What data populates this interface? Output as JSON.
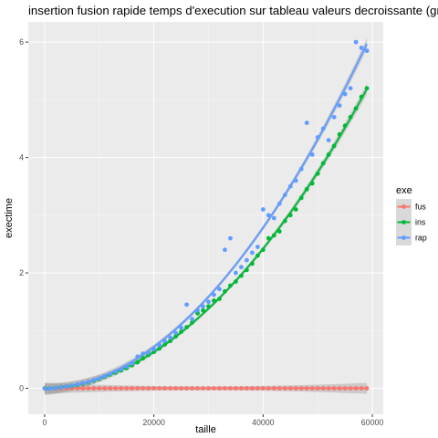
{
  "chart_data": {
    "type": "scatter",
    "title": "insertion fusion rapide temps d'execution sur tableau valeurs decroissante (gro",
    "xlabel": "taille",
    "ylabel": "exectime",
    "xlim": [
      -3000,
      62000
    ],
    "ylim": [
      -0.45,
      6.35
    ],
    "x_ticks": [
      0,
      20000,
      40000,
      60000
    ],
    "x_tick_labels": [
      "0",
      "20000",
      "40000",
      "60000"
    ],
    "y_ticks": [
      0,
      2,
      4,
      6
    ],
    "y_tick_labels": [
      "0",
      "2",
      "4",
      "6"
    ],
    "grid": true,
    "legend": {
      "title": "exe",
      "position": "right",
      "entries": [
        "fus",
        "ins",
        "rap"
      ]
    },
    "smooth": true,
    "series": [
      {
        "name": "fus",
        "color": "#f8766d",
        "x": [
          0,
          1000,
          2000,
          3000,
          4000,
          5000,
          6000,
          7000,
          8000,
          9000,
          10000,
          11000,
          12000,
          13000,
          14000,
          15000,
          16000,
          17000,
          18000,
          19000,
          20000,
          21000,
          22000,
          23000,
          24000,
          25000,
          26000,
          27000,
          28000,
          29000,
          30000,
          31000,
          32000,
          33000,
          34000,
          35000,
          36000,
          37000,
          38000,
          39000,
          40000,
          41000,
          42000,
          43000,
          44000,
          45000,
          46000,
          47000,
          48000,
          49000,
          50000,
          51000,
          52000,
          53000,
          54000,
          55000,
          56000,
          57000,
          58000,
          59000
        ],
        "y": [
          0.0,
          0.0,
          0.0,
          0.0,
          0.0,
          0.0,
          0.0,
          0.0,
          0.0,
          0.0,
          0.0,
          0.0,
          0.0,
          0.0,
          0.0,
          0.0,
          0.0,
          0.0,
          0.0,
          0.0,
          0.0,
          0.0,
          0.0,
          0.0,
          0.0,
          0.0,
          0.0,
          0.0,
          0.0,
          0.0,
          0.0,
          0.0,
          0.0,
          0.0,
          0.0,
          0.0,
          0.0,
          0.0,
          0.0,
          0.0,
          0.0,
          0.0,
          0.0,
          0.0,
          0.0,
          0.0,
          0.0,
          0.0,
          0.0,
          0.0,
          0.0,
          0.0,
          0.0,
          0.0,
          0.0,
          0.0,
          0.0,
          0.0,
          0.0,
          0.0
        ]
      },
      {
        "name": "ins",
        "color": "#00ba38",
        "x": [
          0,
          1000,
          2000,
          3000,
          4000,
          5000,
          6000,
          7000,
          8000,
          9000,
          10000,
          11000,
          12000,
          13000,
          14000,
          15000,
          16000,
          17000,
          18000,
          19000,
          20000,
          21000,
          22000,
          23000,
          24000,
          25000,
          26000,
          27000,
          28000,
          29000,
          30000,
          31000,
          32000,
          33000,
          34000,
          35000,
          36000,
          37000,
          38000,
          39000,
          40000,
          41000,
          42000,
          43000,
          44000,
          45000,
          46000,
          47000,
          48000,
          49000,
          50000,
          51000,
          52000,
          53000,
          54000,
          55000,
          56000,
          57000,
          58000,
          59000
        ],
        "y": [
          0.0,
          0.0,
          0.01,
          0.02,
          0.03,
          0.04,
          0.06,
          0.08,
          0.1,
          0.13,
          0.16,
          0.2,
          0.24,
          0.27,
          0.31,
          0.35,
          0.4,
          0.45,
          0.52,
          0.58,
          0.63,
          0.69,
          0.76,
          0.82,
          0.9,
          0.98,
          1.06,
          1.14,
          1.3,
          1.35,
          1.42,
          1.52,
          1.55,
          1.68,
          1.78,
          1.85,
          1.95,
          2.05,
          2.16,
          2.3,
          2.4,
          2.6,
          2.65,
          2.72,
          2.9,
          3.0,
          3.1,
          3.3,
          3.45,
          3.55,
          3.72,
          3.9,
          4.05,
          4.2,
          4.4,
          4.55,
          4.7,
          4.85,
          5.05,
          5.2
        ]
      },
      {
        "name": "rap",
        "color": "#619cff",
        "x": [
          0,
          1000,
          2000,
          3000,
          4000,
          5000,
          6000,
          7000,
          8000,
          9000,
          10000,
          11000,
          12000,
          13000,
          14000,
          15000,
          16000,
          17000,
          18000,
          19000,
          20000,
          21000,
          22000,
          23000,
          24000,
          25000,
          26000,
          27000,
          28000,
          29000,
          30000,
          31000,
          32000,
          33000,
          34000,
          35000,
          36000,
          37000,
          38000,
          39000,
          40000,
          41000,
          42000,
          43000,
          44000,
          45000,
          46000,
          47000,
          48000,
          49000,
          50000,
          51000,
          52000,
          53000,
          54000,
          55000,
          56000,
          57000,
          58000,
          59000
        ],
        "y": [
          0.0,
          0.0,
          0.01,
          0.02,
          0.03,
          0.05,
          0.07,
          0.09,
          0.11,
          0.14,
          0.17,
          0.21,
          0.25,
          0.29,
          0.33,
          0.38,
          0.43,
          0.55,
          0.6,
          0.62,
          0.68,
          0.75,
          0.82,
          0.88,
          0.96,
          1.05,
          1.45,
          1.2,
          1.35,
          1.42,
          1.5,
          1.62,
          1.72,
          2.4,
          2.6,
          2.0,
          2.1,
          2.22,
          2.35,
          2.45,
          3.1,
          3.0,
          2.95,
          3.2,
          3.35,
          3.5,
          3.6,
          3.8,
          4.6,
          4.05,
          4.35,
          4.5,
          4.3,
          4.7,
          4.9,
          5.1,
          5.2,
          6.0,
          5.9,
          5.85
        ]
      }
    ]
  }
}
